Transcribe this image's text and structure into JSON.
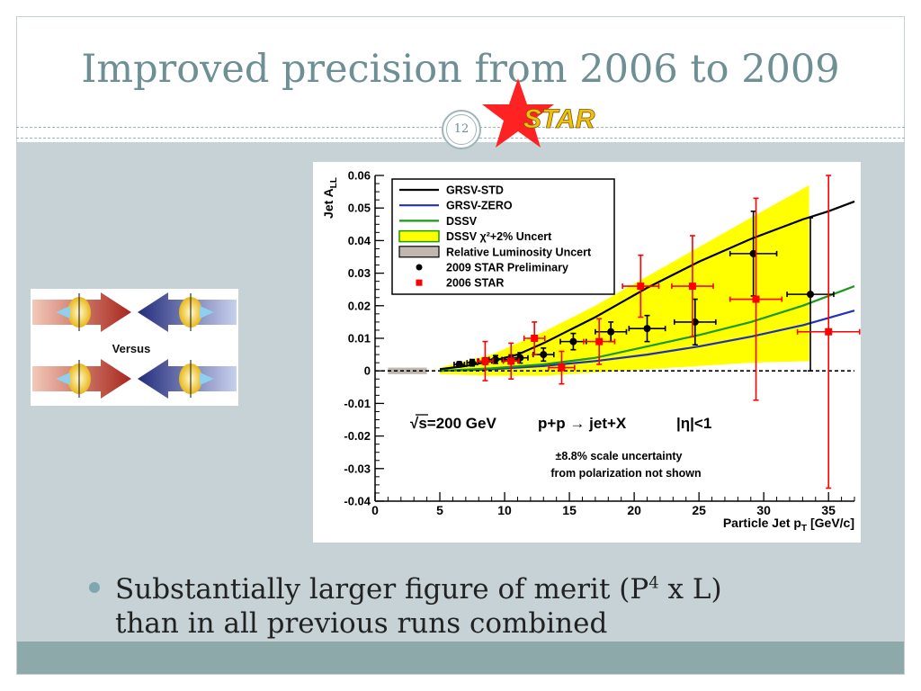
{
  "slide": {
    "title": "Improved precision from 2006 to 2009",
    "number": "12",
    "logo_text": "STAR",
    "versus_label": "Versus",
    "bullet": {
      "pre": "Substantially larger figure of merit (P",
      "sup": "4",
      "post": " x L)",
      "line2": "than in all previous runs combined"
    },
    "colors": {
      "accent": "#6e8f94",
      "band": "#c6d2d6",
      "footer": "#8ea9aa"
    }
  },
  "chart_data": {
    "type": "scatter",
    "title": "",
    "xlabel": "Particle Jet pT [GeV/c]",
    "ylabel": "Jet ALL",
    "xlim": [
      0,
      37
    ],
    "ylim": [
      -0.04,
      0.06
    ],
    "xticks": [
      0,
      5,
      10,
      15,
      20,
      25,
      30,
      35
    ],
    "yticks": [
      -0.04,
      -0.03,
      -0.02,
      -0.01,
      0,
      0.01,
      0.02,
      0.03,
      0.04,
      0.05,
      0.06
    ],
    "grid": false,
    "legend_position": "top-left",
    "legend": [
      "GRSV-STD",
      "GRSV-ZERO",
      "DSSV",
      "DSSV χ²+2% Uncert",
      "Relative Luminosity Uncert",
      "2009 STAR Preliminary",
      "2006 STAR"
    ],
    "annotations": [
      "√s=200 GeV",
      "p+p → jet+X",
      "|η|<1",
      "±8.8% scale uncertainty",
      "from polarization not shown"
    ],
    "curves": [
      {
        "name": "GRSV-STD",
        "color": "#000000",
        "x": [
          5,
          7,
          9,
          11,
          13,
          15,
          17,
          19,
          21,
          23,
          25,
          27,
          29,
          31,
          33,
          35,
          37
        ],
        "y": [
          0.0005,
          0.0015,
          0.003,
          0.005,
          0.0085,
          0.0125,
          0.0165,
          0.021,
          0.0255,
          0.0295,
          0.0335,
          0.037,
          0.0405,
          0.0435,
          0.0465,
          0.049,
          0.052
        ]
      },
      {
        "name": "GRSV-ZERO",
        "color": "#1f2fbf",
        "x": [
          5,
          9,
          13,
          17,
          21,
          25,
          29,
          33,
          37
        ],
        "y": [
          0,
          0.0005,
          0.0015,
          0.003,
          0.005,
          0.0075,
          0.0105,
          0.014,
          0.0185
        ]
      },
      {
        "name": "DSSV",
        "color": "#1a9a1a",
        "x": [
          5,
          9,
          13,
          17,
          21,
          25,
          29,
          33,
          37
        ],
        "y": [
          0,
          0.0008,
          0.002,
          0.004,
          0.0075,
          0.011,
          0.015,
          0.02,
          0.026
        ]
      }
    ],
    "band": {
      "name": "DSSV χ²+2% Uncert",
      "color": "#ffff00",
      "x": [
        5,
        9,
        13,
        17,
        21,
        25,
        29,
        33.5
      ],
      "upper": [
        0.001,
        0.005,
        0.012,
        0.02,
        0.029,
        0.038,
        0.047,
        0.057
      ],
      "lower": [
        -0.001,
        -0.0015,
        -0.0015,
        -0.0005,
        0.0005,
        0.0015,
        0.0025,
        0.003
      ]
    },
    "luminosity_band": {
      "name": "Relative Luminosity Uncert",
      "color": "#c0b8b0",
      "x": [
        1,
        4
      ],
      "half_height": 0.001
    },
    "series": [
      {
        "name": "2009 STAR Preliminary",
        "color": "#000000",
        "marker": "circle",
        "x": [
          6.5,
          7.5,
          8.5,
          9.3,
          10.5,
          11.2,
          13.0,
          15.3,
          18.2,
          21.0,
          24.7,
          29.2,
          33.6
        ],
        "y": [
          0.002,
          0.0025,
          0.003,
          0.0035,
          0.0035,
          0.004,
          0.005,
          0.009,
          0.012,
          0.013,
          0.015,
          0.036,
          0.0235
        ],
        "yerr": [
          0.0008,
          0.001,
          0.001,
          0.0012,
          0.0014,
          0.0016,
          0.002,
          0.0025,
          0.003,
          0.004,
          0.007,
          0.013,
          0.0235
        ],
        "xerr": [
          0.4,
          0.4,
          0.5,
          0.5,
          0.5,
          0.6,
          0.8,
          1.0,
          1.2,
          1.4,
          1.6,
          1.8,
          1.8
        ]
      },
      {
        "name": "2006 STAR",
        "color": "#ff0000",
        "marker": "square",
        "x": [
          8.5,
          10.5,
          12.3,
          14.4,
          17.3,
          20.5,
          24.5,
          29.4,
          35.0
        ],
        "y": [
          0.003,
          0.003,
          0.01,
          0.001,
          0.009,
          0.026,
          0.026,
          0.022,
          0.012
        ],
        "yerr": [
          0.006,
          0.0055,
          0.005,
          0.005,
          0.007,
          0.0095,
          0.0155,
          0.031,
          0.048
        ],
        "xerr": [
          0.6,
          0.6,
          0.8,
          1.0,
          1.2,
          1.4,
          1.6,
          2.0,
          2.4
        ]
      }
    ]
  }
}
